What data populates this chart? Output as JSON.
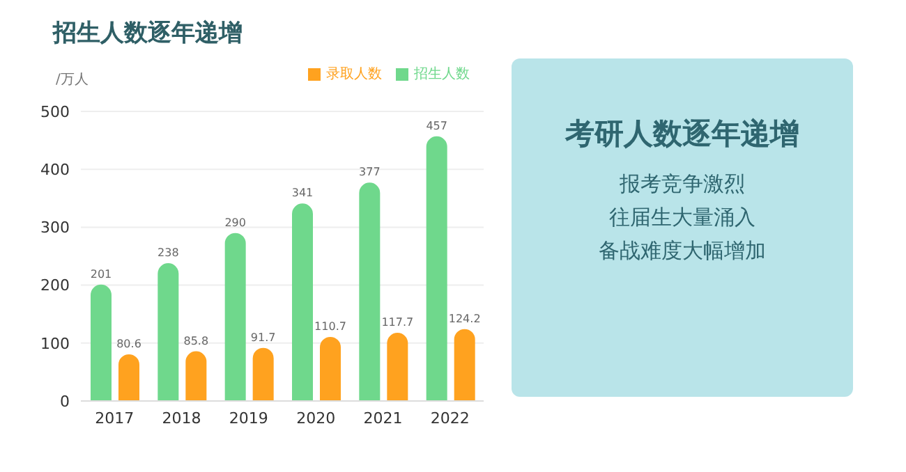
{
  "chart_data": {
    "type": "bar",
    "title": "招生人数逐年递增",
    "ylabel": "/万人",
    "categories": [
      "2017",
      "2018",
      "2019",
      "2020",
      "2021",
      "2022"
    ],
    "series": [
      {
        "name": "招生人数",
        "color": "#6fd88c",
        "values": [
          201,
          238,
          290,
          341,
          377,
          457
        ]
      },
      {
        "name": "录取人数",
        "color": "#ffa21f",
        "values": [
          80.6,
          85.8,
          91.7,
          110.7,
          117.7,
          124.2
        ]
      }
    ],
    "ylim": [
      0,
      500
    ],
    "yticks": [
      0,
      100,
      200,
      300,
      400,
      500
    ],
    "grid": "y",
    "legend": "top right",
    "data_labels": true,
    "annotations": [
      "考研人数逐年递增",
      "报考竞争激烈",
      "往届生大量涌入",
      "备战难度大幅增加"
    ]
  }
}
